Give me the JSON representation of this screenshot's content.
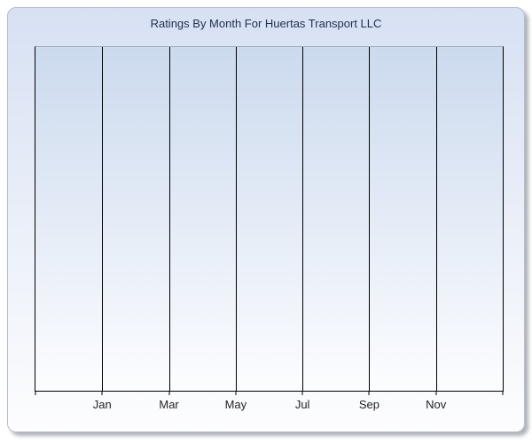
{
  "chart_data": {
    "type": "bar",
    "title": "Ratings By Month For Huertas Transport LLC",
    "x_tick_labels": [
      "Jan",
      "Mar",
      "May",
      "Jul",
      "Sep",
      "Nov"
    ],
    "series": [],
    "xlabel": "",
    "ylabel": "",
    "y_tick_labels": [],
    "grid": {
      "vertical": true,
      "horizontal": false
    },
    "legend": null
  },
  "colors": {
    "page_bg": "#ffffff",
    "panel_border": "#b6bdca",
    "panel_grad_top": "#d7e1f3",
    "panel_grad_bottom": "#fdfdfe",
    "plot_grad_top": "#ccdaee",
    "plot_grad_bottom": "#fcfdff",
    "plot_border_top": "#a6aebe",
    "gridline": "#000000",
    "title_text": "#22304e",
    "axis_label": "#1f1f1f"
  }
}
